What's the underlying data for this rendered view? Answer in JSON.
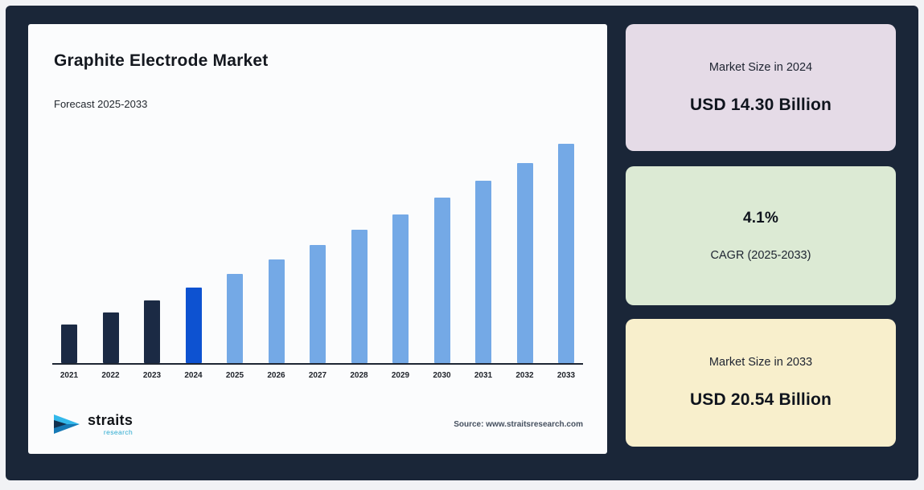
{
  "chart": {
    "title": "Graphite Electrode Market",
    "subtitle": "Forecast 2025-2033",
    "source": "Source: www.straitsresearch.com",
    "logo_name": "straits",
    "logo_sub": "research"
  },
  "chart_data": {
    "type": "bar",
    "title": "Graphite Electrode Market",
    "subtitle": "Forecast 2025-2033",
    "unit": "USD Billion",
    "categories": [
      "2021",
      "2022",
      "2023",
      "2024",
      "2025",
      "2026",
      "2027",
      "2028",
      "2029",
      "2030",
      "2031",
      "2032",
      "2033"
    ],
    "values": [
      12.68,
      13.2,
      13.74,
      14.3,
      14.89,
      15.5,
      16.13,
      16.79,
      17.48,
      18.2,
      18.94,
      19.72,
      20.54
    ],
    "segments": [
      "historical",
      "historical",
      "historical",
      "base_year",
      "forecast",
      "forecast",
      "forecast",
      "forecast",
      "forecast",
      "forecast",
      "forecast",
      "forecast",
      "forecast"
    ],
    "colors": {
      "historical": "#1b2a44",
      "base_year": "#0d52d1",
      "forecast": "#74a9e6"
    },
    "known_points": {
      "2024": 14.3,
      "2033": 20.54
    },
    "cagr_pct": 4.1,
    "ylim": [
      11,
      21
    ],
    "grid": false,
    "legend": "none",
    "xlabel": "",
    "ylabel": ""
  },
  "cards": [
    {
      "label": "Market Size in 2024",
      "value": "USD 14.30 Billion",
      "bg": "#e5dbe7"
    },
    {
      "value": "4.1%",
      "label": "CAGR (2025-2033)",
      "bg": "#dcead4"
    },
    {
      "label": "Market Size in 2033",
      "value": "USD 20.54 Billion",
      "bg": "#f8efcc"
    }
  ]
}
